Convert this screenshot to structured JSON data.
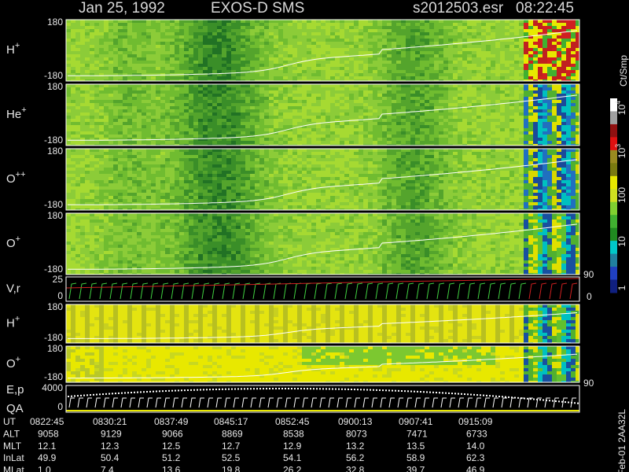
{
  "header": {
    "date": "Jan 25, 1992",
    "instrument": "EXOS-D SMS",
    "file": "s2012503.esr",
    "time": "08:22:45"
  },
  "panels": [
    {
      "label": "H",
      "sup": "+",
      "top": "180",
      "bottom": "-180"
    },
    {
      "label": "He",
      "sup": "+",
      "top": "180",
      "bottom": "-180"
    },
    {
      "label": "O",
      "sup": "++",
      "top": "180",
      "bottom": "-180"
    },
    {
      "label": "O",
      "sup": "+",
      "top": "180",
      "bottom": "-180"
    },
    {
      "label": "V,r",
      "top": "25",
      "bottom": "0",
      "right_top": "90",
      "right_bottom": "0"
    },
    {
      "label": "H",
      "sup": "+",
      "top": "180",
      "bottom": "-180"
    },
    {
      "label": "O",
      "sup": "+",
      "top": "180",
      "bottom": "-180"
    },
    {
      "label": "E,p",
      "label2": "QA",
      "top": "4000",
      "bottom": "0",
      "right_top": "90"
    }
  ],
  "colorbar": {
    "unit": "Ct/Smp",
    "ticks": [
      {
        "text": "10",
        "sup": "4"
      },
      {
        "text": "10",
        "sup": "3"
      },
      {
        "text": "100"
      },
      {
        "text": "10"
      },
      {
        "text": "1"
      }
    ]
  },
  "table": {
    "rows": [
      {
        "label": "UT",
        "values": [
          "0822:45",
          "0830:21",
          "0837:49",
          "0845:17",
          "0852:45",
          "0900:13",
          "0907:41",
          "0915:09"
        ]
      },
      {
        "label": "ALT",
        "values": [
          "9058",
          "9129",
          "9066",
          "8869",
          "8538",
          "8073",
          "7471",
          "6733"
        ]
      },
      {
        "label": "MLT",
        "values": [
          "12.1",
          "12.3",
          "12.5",
          "12.7",
          "12.9",
          "13.2",
          "13.5",
          "14.0"
        ]
      },
      {
        "label": "InLat",
        "values": [
          "49.9",
          "50.4",
          "51.2",
          "52.5",
          "54.1",
          "56.2",
          "58.9",
          "62.3"
        ]
      },
      {
        "label": "MLat",
        "values": [
          "1.0",
          "7.4",
          "13.6",
          "19.8",
          "26.2",
          "32.8",
          "39.7",
          "46.9"
        ]
      }
    ]
  },
  "footer": "Feb-01 2AA32L"
}
